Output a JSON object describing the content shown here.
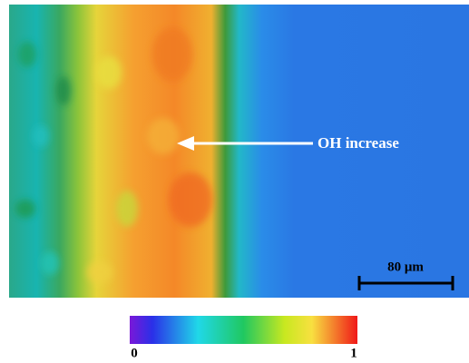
{
  "annotation": "OH increase",
  "scale_bar": "80 μm",
  "colorbar": {
    "min": "0",
    "max": "1"
  }
}
